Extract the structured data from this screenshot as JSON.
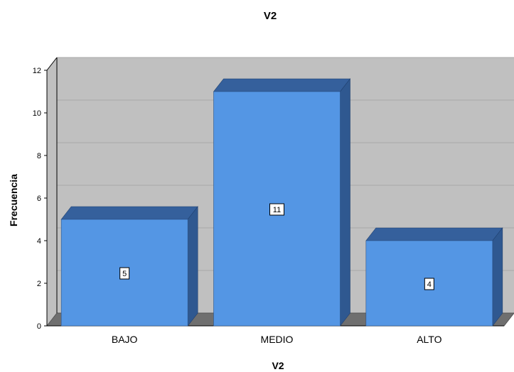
{
  "chart_data": {
    "type": "bar",
    "title": "V2",
    "xlabel": "V2",
    "ylabel": "Frecuencia",
    "categories": [
      "BAJO",
      "MEDIO",
      "ALTO"
    ],
    "values": [
      5,
      11,
      4
    ],
    "data_labels": [
      "5",
      "11",
      "4"
    ],
    "ylim": [
      0,
      12
    ],
    "yticks": [
      "0",
      "2",
      "4",
      "6",
      "8",
      "10",
      "12"
    ],
    "grid": true,
    "style": "3d",
    "colors": {
      "bar_front": "#5496e4",
      "bar_top": "#35609c",
      "bar_side": "#2f5890",
      "wall": "#c0c0c0",
      "floor": "#6f6f6f"
    }
  }
}
